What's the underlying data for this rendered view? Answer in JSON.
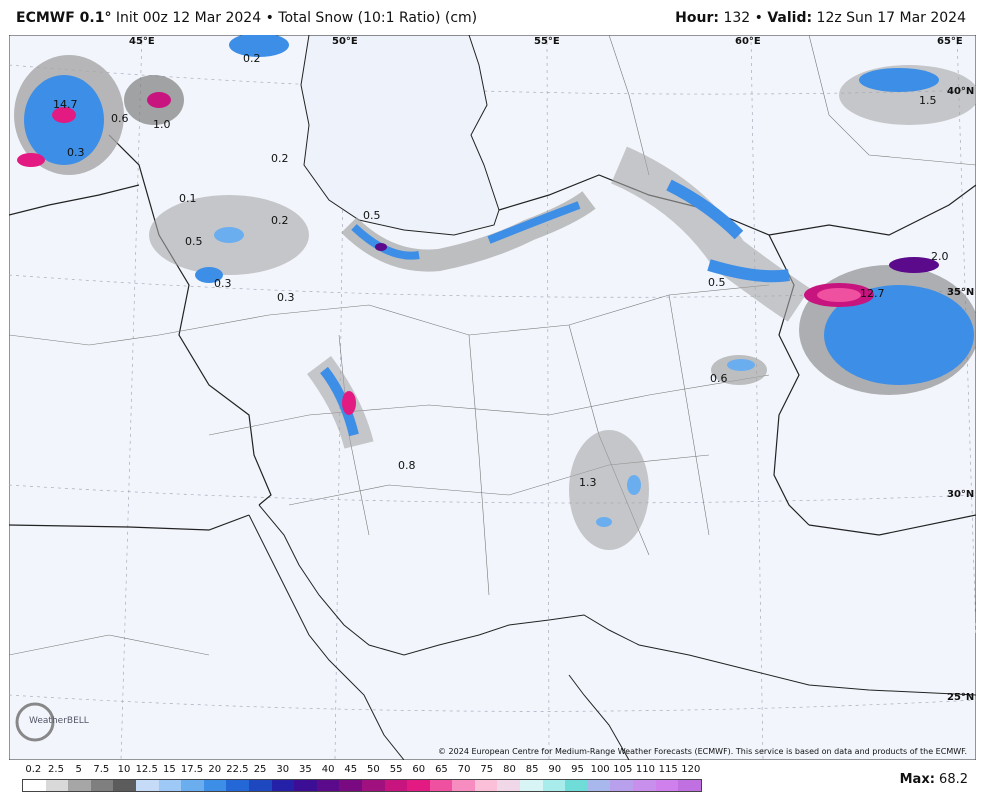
{
  "header": {
    "model": "ECMWF 0.1°",
    "init": "Init 00z 12 Mar 2024",
    "bullet": "•",
    "product": "Total Snow (10:1 Ratio) (cm)",
    "hour_label": "Hour:",
    "hour": "132",
    "valid_label": "Valid:",
    "valid": "12z Sun 17 Mar 2024"
  },
  "map": {
    "longitudes": [
      "45°E",
      "50°E",
      "55°E",
      "60°E",
      "65°E"
    ],
    "latitudes": [
      "40°N",
      "35°N",
      "30°N",
      "25°N"
    ],
    "point_labels": [
      "0.2",
      "14.7",
      "0.6",
      "1.0",
      "0.3",
      "0.2",
      "0.1",
      "0.2",
      "0.5",
      "0.5",
      "0.3",
      "0.3",
      "0.5",
      "12.7",
      "2.0",
      "1.5",
      "0.6",
      "0.8",
      "1.3"
    ],
    "logo": "WeatherBELL",
    "copyright": "© 2024 European Centre for Medium-Range Weather Forecasts (ECMWF). This service is based on data and products of the ECMWF."
  },
  "colorbar": {
    "labels": [
      0.2,
      2.5,
      5,
      7.5,
      10,
      12.5,
      15,
      17.5,
      20,
      22.5,
      25,
      30,
      35,
      40,
      45,
      50,
      55,
      60,
      65,
      70,
      75,
      80,
      85,
      90,
      95,
      100,
      105,
      110,
      115,
      120
    ],
    "colors": [
      "#ffffff",
      "#d9d9d9",
      "#a6a6a6",
      "#7f7f7f",
      "#5c5c5c",
      "#c6dbf7",
      "#9ec8f5",
      "#6aaef0",
      "#3d8ee6",
      "#2468d8",
      "#1d48c0",
      "#2420a8",
      "#3c0e96",
      "#5a0a8a",
      "#7a0a82",
      "#a0107e",
      "#c8147e",
      "#e21a82",
      "#f050a0",
      "#f78cc0",
      "#fbbfd8",
      "#f0d8e8",
      "#d8f4f4",
      "#a8ecec",
      "#70dcd8",
      "#a8b8ec",
      "#b8a0ec",
      "#c890ec",
      "#d080ec",
      "#c070e0"
    ],
    "max_label": "Max:",
    "max": "68.2"
  }
}
